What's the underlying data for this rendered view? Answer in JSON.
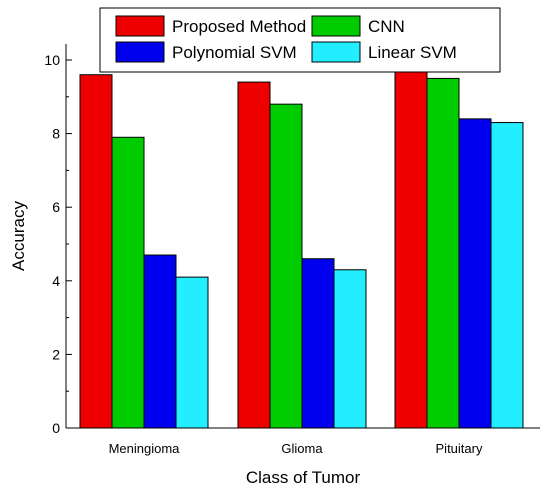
{
  "chart_data": {
    "type": "bar",
    "categories": [
      "Meningioma",
      "Glioma",
      "Pituitary"
    ],
    "series": [
      {
        "name": "Proposed Method",
        "color": "#ee0000",
        "values": [
          9.6,
          9.4,
          9.7
        ]
      },
      {
        "name": "CNN",
        "color": "#00cc00",
        "values": [
          7.9,
          8.8,
          9.5
        ]
      },
      {
        "name": "Polynomial SVM",
        "color": "#0000ee",
        "values": [
          4.7,
          4.6,
          8.4
        ]
      },
      {
        "name": "Linear SVM",
        "color": "#22eeff",
        "values": [
          4.1,
          4.3,
          8.3
        ]
      }
    ],
    "title": "",
    "xlabel": "Class of Tumor",
    "ylabel": "Accuracy",
    "ylim": [
      0,
      10.5
    ],
    "yticks": [
      0,
      2,
      4,
      6,
      8,
      10
    ],
    "legend_position": "top",
    "grid": false
  }
}
